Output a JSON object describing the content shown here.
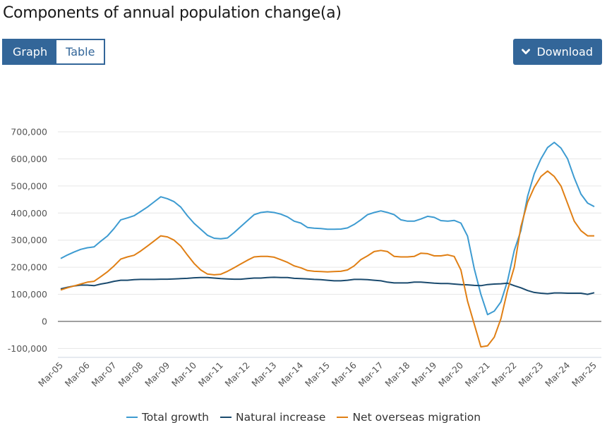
{
  "header": {
    "title": "Components of annual population change(a)"
  },
  "view_toggle": {
    "graph_label": "Graph",
    "table_label": "Table",
    "selected": "Graph"
  },
  "download": {
    "label": "Download",
    "icon": "chevron-down-icon"
  },
  "colors": {
    "brand": "#336699",
    "total_growth": "#3d9bd1",
    "natural_increase": "#1a4a6e",
    "net_overseas_migration": "#e07f14",
    "grid": "#e6e6e6",
    "zero_line": "#a0a0a0"
  },
  "chart_data": {
    "type": "line",
    "title": "Components of annual population change(a)",
    "xlabel": "",
    "ylabel": "",
    "ylim": [
      -100000,
      700000
    ],
    "y_ticks": [
      -100000,
      0,
      100000,
      200000,
      300000,
      400000,
      500000,
      600000,
      700000
    ],
    "y_tick_labels": [
      "-100,000",
      "0",
      "100,000",
      "200,000",
      "300,000",
      "400,000",
      "500,000",
      "600,000",
      "700,000"
    ],
    "x_tick_labels": [
      "Mar-05",
      "Mar-06",
      "Mar-07",
      "Mar-08",
      "Mar-09",
      "Mar-10",
      "Mar-11",
      "Mar-12",
      "Mar-13",
      "Mar-14",
      "Mar-15",
      "Mar-16",
      "Mar-17",
      "Mar-18",
      "Mar-19",
      "Mar-20",
      "Mar-21",
      "Mar-22",
      "Mar-23",
      "Mar-24",
      "Mar-25"
    ],
    "x_frequency": "quarterly",
    "x_start": "Mar-05",
    "x_end": "Mar-25",
    "grid": true,
    "legend_position": "bottom",
    "series": [
      {
        "name": "Total growth",
        "color_key": "total_growth",
        "values": [
          232000,
          245000,
          256000,
          266000,
          272000,
          275000,
          296000,
          315000,
          343000,
          375000,
          382000,
          390000,
          406000,
          422000,
          441000,
          460000,
          453000,
          442000,
          422000,
          390000,
          362000,
          340000,
          318000,
          307000,
          305000,
          308000,
          328000,
          350000,
          372000,
          394000,
          402000,
          405000,
          402000,
          396000,
          386000,
          370000,
          363000,
          347000,
          344000,
          343000,
          340000,
          340000,
          341000,
          345000,
          358000,
          375000,
          394000,
          402000,
          408000,
          402000,
          394000,
          375000,
          370000,
          370000,
          378000,
          388000,
          384000,
          372000,
          370000,
          373000,
          363000,
          315000,
          195000,
          100000,
          25000,
          38000,
          72000,
          150000,
          262000,
          335000,
          462000,
          545000,
          600000,
          642000,
          661000,
          640000,
          600000,
          530000,
          470000,
          437000,
          424000
        ]
      },
      {
        "name": "Natural increase",
        "color_key": "natural_increase",
        "values": [
          120000,
          126000,
          131000,
          134000,
          134000,
          132000,
          138000,
          142000,
          148000,
          152000,
          152000,
          154000,
          155000,
          155000,
          155000,
          156000,
          156000,
          157000,
          158000,
          159000,
          161000,
          162000,
          162000,
          160000,
          158000,
          157000,
          156000,
          156000,
          158000,
          160000,
          160000,
          162000,
          163000,
          162000,
          162000,
          159000,
          158000,
          157000,
          155000,
          154000,
          152000,
          150000,
          150000,
          152000,
          155000,
          155000,
          154000,
          152000,
          150000,
          145000,
          142000,
          142000,
          142000,
          145000,
          145000,
          143000,
          141000,
          140000,
          140000,
          138000,
          136000,
          135000,
          133000,
          132000,
          136000,
          138000,
          139000,
          141000,
          132000,
          124000,
          114000,
          107000,
          104000,
          102000,
          105000,
          105000,
          104000,
          104000,
          104000,
          100000,
          106000
        ]
      },
      {
        "name": "Net overseas migration",
        "color_key": "net_overseas_migration",
        "values": [
          116000,
          124000,
          131000,
          138000,
          145000,
          148000,
          165000,
          183000,
          205000,
          230000,
          238000,
          244000,
          260000,
          278000,
          297000,
          316000,
          312000,
          300000,
          278000,
          245000,
          214000,
          190000,
          175000,
          172000,
          174000,
          185000,
          198000,
          212000,
          226000,
          238000,
          240000,
          240000,
          237000,
          228000,
          218000,
          205000,
          198000,
          188000,
          185000,
          184000,
          183000,
          184000,
          185000,
          190000,
          205000,
          228000,
          242000,
          258000,
          262000,
          258000,
          240000,
          238000,
          238000,
          240000,
          252000,
          250000,
          242000,
          242000,
          246000,
          240000,
          190000,
          75000,
          -10000,
          -94000,
          -90000,
          -58000,
          10000,
          115000,
          200000,
          350000,
          440000,
          495000,
          535000,
          555000,
          535000,
          500000,
          435000,
          370000,
          335000,
          316000,
          316000
        ]
      }
    ]
  }
}
